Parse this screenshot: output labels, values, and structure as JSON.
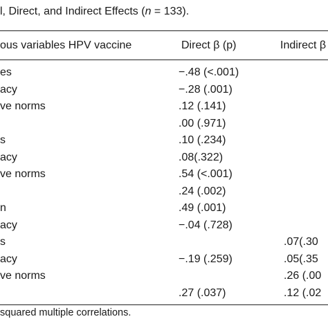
{
  "caption": {
    "pre": "l, Direct, and Indirect Effects (",
    "n_var": "n",
    "post": " = 133)."
  },
  "header": {
    "variables": "ous variables HPV vaccine",
    "direct": "Direct β (p)",
    "indirect": "Indirect β"
  },
  "rows": [
    {
      "label": "es",
      "direct": "−.48 (<.001)",
      "indirect": ""
    },
    {
      "label": "acy",
      "direct": "−.28 (.001)",
      "indirect": ""
    },
    {
      "label": "ve norms",
      "direct": ".12 (.141)",
      "indirect": ""
    },
    {
      "label": "",
      "direct": ".00 (.971)",
      "indirect": ""
    },
    {
      "label": "s",
      "direct": ".10 (.234)",
      "indirect": ""
    },
    {
      "label": "acy",
      "direct": ".08(.322)",
      "indirect": ""
    },
    {
      "label": "ve norms",
      "direct": ".54 (<.001)",
      "indirect": ""
    },
    {
      "label": "",
      "direct": ".24 (.002)",
      "indirect": ""
    },
    {
      "label": "n",
      "direct": ".49 (.001)",
      "indirect": ""
    },
    {
      "label": "acy",
      "direct": "−.04 (.728)",
      "indirect": ""
    },
    {
      "label": "s",
      "direct": "",
      "indirect": ".07(.30"
    },
    {
      "label": "acy",
      "direct": "−.19 (.259)",
      "indirect": ".05(.35"
    },
    {
      "label": "ve norms",
      "direct": "",
      "indirect": ".26 (.00"
    },
    {
      "label": "",
      "direct": ".27 (.037)",
      "indirect": ".12 (.02"
    }
  ],
  "note": "squared multiple correlations."
}
